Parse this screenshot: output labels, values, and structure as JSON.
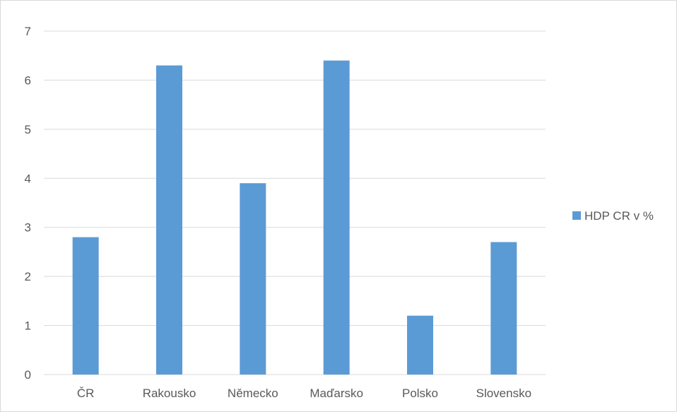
{
  "chart_data": {
    "type": "bar",
    "categories": [
      "ČR",
      "Rakousko",
      "Německo",
      "Maďarsko",
      "Polsko",
      "Slovensko"
    ],
    "series": [
      {
        "name": "HDP CR v %",
        "values": [
          2.8,
          6.3,
          3.9,
          6.4,
          1.2,
          2.7
        ]
      }
    ],
    "ylim": [
      0,
      7
    ],
    "yticks": [
      0,
      1,
      2,
      3,
      4,
      5,
      6,
      7
    ],
    "grid": true,
    "legend": "right",
    "colors": {
      "bar": "#5b9bd5",
      "grid": "#d9d9d9",
      "text": "#595959"
    }
  }
}
